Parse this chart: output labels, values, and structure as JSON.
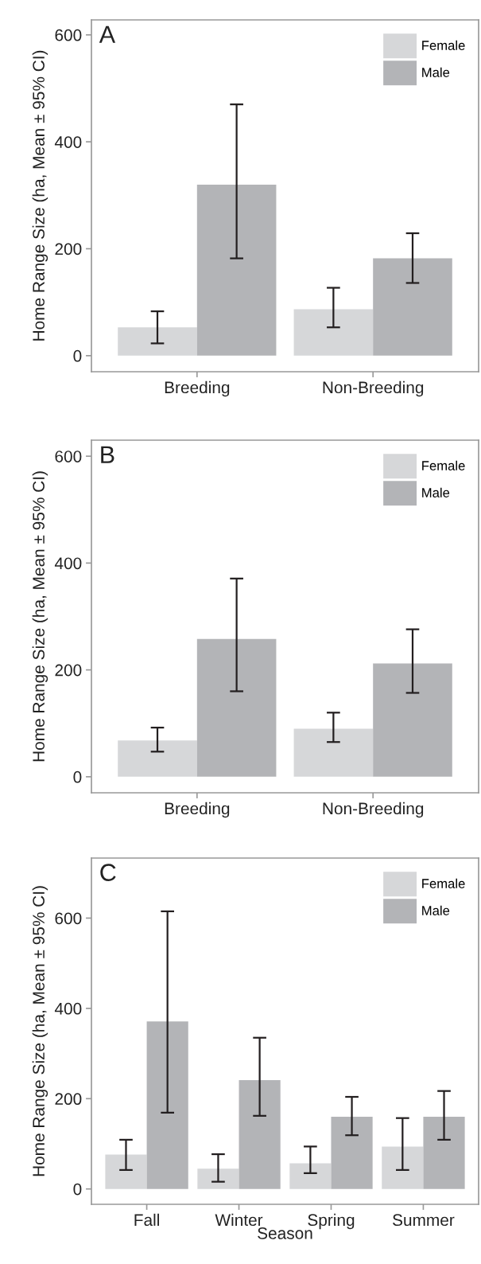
{
  "chart_data": [
    {
      "type": "bar",
      "ylabel": "Home Range Size (ha, Mean ± 95% CI)",
      "annotations": [
        "A"
      ],
      "categories": [
        "Breeding",
        "Non-Breeding"
      ],
      "ylim": [
        -30,
        628
      ],
      "yticks": [
        0,
        200,
        400,
        600
      ],
      "grid": false,
      "legend": "top right",
      "series": [
        {
          "name": "Female",
          "color": "#d6d7d9",
          "values": [
            53,
            87
          ],
          "errors": [
            [
              23,
              83
            ],
            [
              53,
              127
            ]
          ]
        },
        {
          "name": "Male",
          "color": "#b3b4b7",
          "values": [
            320,
            182
          ],
          "errors": [
            [
              182,
              470
            ],
            [
              136,
              229
            ]
          ]
        }
      ]
    },
    {
      "type": "bar",
      "ylabel": "Home Range Size (ha, Mean ± 95% CI)",
      "annotations": [
        "B"
      ],
      "categories": [
        "Breeding",
        "Non-Breeding"
      ],
      "ylim": [
        -30,
        630
      ],
      "yticks": [
        0,
        200,
        400,
        600
      ],
      "grid": false,
      "legend": "top right",
      "series": [
        {
          "name": "Female",
          "color": "#d6d7d9",
          "values": [
            68,
            90
          ],
          "errors": [
            [
              47,
              92
            ],
            [
              65,
              120
            ]
          ]
        },
        {
          "name": "Male",
          "color": "#b3b4b7",
          "values": [
            258,
            212
          ],
          "errors": [
            [
              160,
              371
            ],
            [
              157,
              276
            ]
          ]
        }
      ]
    },
    {
      "type": "bar",
      "ylabel": "Home Range Size (ha, Mean ± 95% CI)",
      "xlabel": "Season",
      "annotations": [
        "C"
      ],
      "categories": [
        "Fall",
        "Winter",
        "Spring",
        "Summer"
      ],
      "ylim": [
        -34,
        733
      ],
      "yticks": [
        0,
        200,
        400,
        600
      ],
      "grid": false,
      "legend": "top right",
      "series": [
        {
          "name": "Female",
          "color": "#d6d7d9",
          "values": [
            76,
            45,
            57,
            94
          ],
          "errors": [
            [
              42,
              109
            ],
            [
              16,
              77
            ],
            [
              35,
              94
            ],
            [
              42,
              157
            ]
          ]
        },
        {
          "name": "Male",
          "color": "#b3b4b7",
          "values": [
            371,
            241,
            160,
            160
          ],
          "errors": [
            [
              169,
              615
            ],
            [
              162,
              335
            ],
            [
              119,
              204
            ],
            [
              109,
              217
            ]
          ]
        }
      ]
    }
  ]
}
